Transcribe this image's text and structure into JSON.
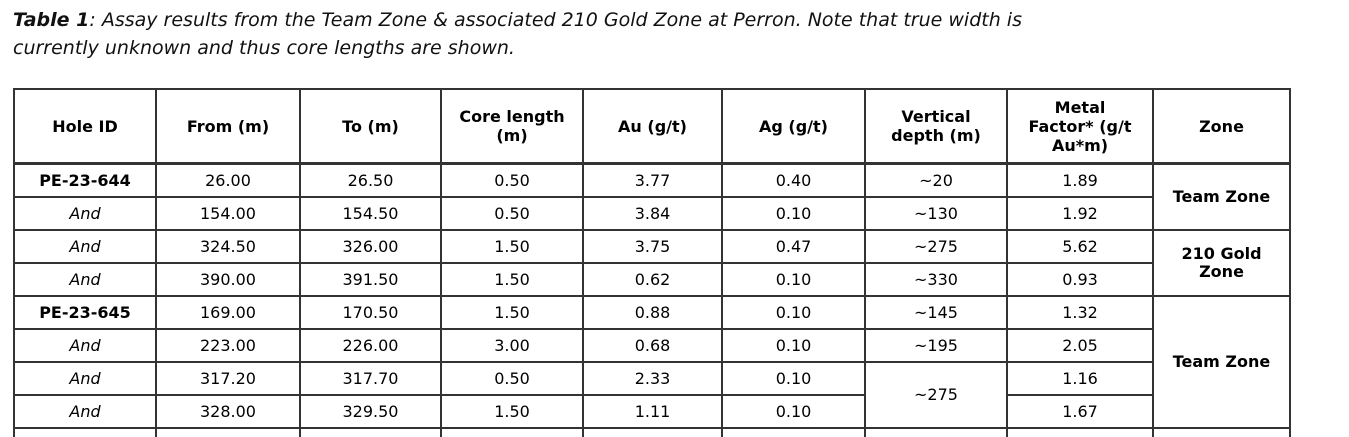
{
  "caption": {
    "label": "Table 1",
    "body": ": Assay results from the Team Zone & associated 210 Gold Zone at Perron. Note that true width is\ncurrently unknown and thus core lengths are shown."
  },
  "table": {
    "headers": {
      "hole_id": "Hole ID",
      "from": "From (m)",
      "to": "To (m)",
      "core_length": "Core length\n(m)",
      "au": "Au (g/t)",
      "ag": "Ag (g/t)",
      "vertical_depth": "Vertical\ndepth (m)",
      "metal_factor": "Metal\nFactor* (g/t\nAu*m)",
      "zone": "Zone"
    },
    "rows": [
      {
        "hole_id": "PE-23-644",
        "from": "26.00",
        "to": "26.50",
        "core_length": "0.50",
        "au": "3.77",
        "ag": "0.40",
        "vertical_depth": "~20",
        "metal_factor": "1.89"
      },
      {
        "hole_id": "And",
        "from": "154.00",
        "to": "154.50",
        "core_length": "0.50",
        "au": "3.84",
        "ag": "0.10",
        "vertical_depth": "~130",
        "metal_factor": "1.92"
      },
      {
        "hole_id": "And",
        "from": "324.50",
        "to": "326.00",
        "core_length": "1.50",
        "au": "3.75",
        "ag": "0.47",
        "vertical_depth": "~275",
        "metal_factor": "5.62"
      },
      {
        "hole_id": "And",
        "from": "390.00",
        "to": "391.50",
        "core_length": "1.50",
        "au": "0.62",
        "ag": "0.10",
        "vertical_depth": "~330",
        "metal_factor": "0.93"
      },
      {
        "hole_id": "PE-23-645",
        "from": "169.00",
        "to": "170.50",
        "core_length": "1.50",
        "au": "0.88",
        "ag": "0.10",
        "vertical_depth": "~145",
        "metal_factor": "1.32"
      },
      {
        "hole_id": "And",
        "from": "223.00",
        "to": "226.00",
        "core_length": "3.00",
        "au": "0.68",
        "ag": "0.10",
        "vertical_depth": "~195",
        "metal_factor": "2.05"
      },
      {
        "hole_id": "And",
        "from": "317.20",
        "to": "317.70",
        "core_length": "0.50",
        "au": "2.33",
        "ag": "0.10",
        "vertical_depth": "~275",
        "metal_factor": "1.16"
      },
      {
        "hole_id": "And",
        "from": "328.00",
        "to": "329.50",
        "core_length": "1.50",
        "au": "1.11",
        "ag": "0.10",
        "metal_factor": "1.67"
      }
    ],
    "zones": [
      {
        "label": "Team Zone"
      },
      {
        "label": "210 Gold\nZone"
      },
      {
        "label": "Team Zone"
      }
    ]
  },
  "colors": {
    "text": "#000000",
    "border": "#333333",
    "background": "#ffffff"
  }
}
